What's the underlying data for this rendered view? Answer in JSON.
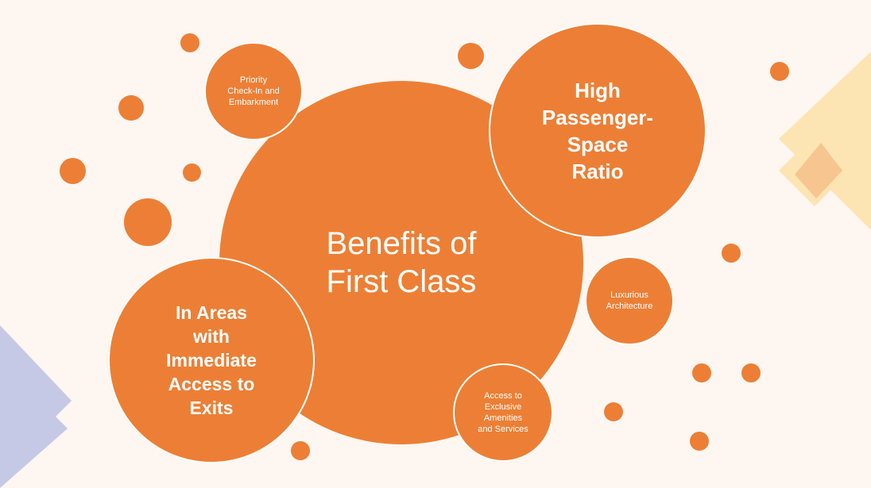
{
  "colors": {
    "background": "#fdf6f1",
    "bubble": "#ec7f35",
    "bubble_border": "#ffffff",
    "text": "#ffffff",
    "yellow_deco": "#fde4b3",
    "orange_deco": "#f5c089",
    "blue_deco": "#c5c9e6"
  },
  "diagram": {
    "center": {
      "label": "Benefits of\nFirst Class"
    },
    "nodes": [
      {
        "id": "priority",
        "label": "Priority\nCheck-In and\nEmbarkment"
      },
      {
        "id": "space",
        "label": "High\nPassenger-\nSpace\nRatio"
      },
      {
        "id": "architecture",
        "label": "Luxurious\nArchitecture"
      },
      {
        "id": "amenities",
        "label": "Access to\nExclusive\nAmenities\nand Services"
      },
      {
        "id": "exits",
        "label": "In Areas\nwith\nImmediate\nAccess to\nExits"
      }
    ]
  }
}
